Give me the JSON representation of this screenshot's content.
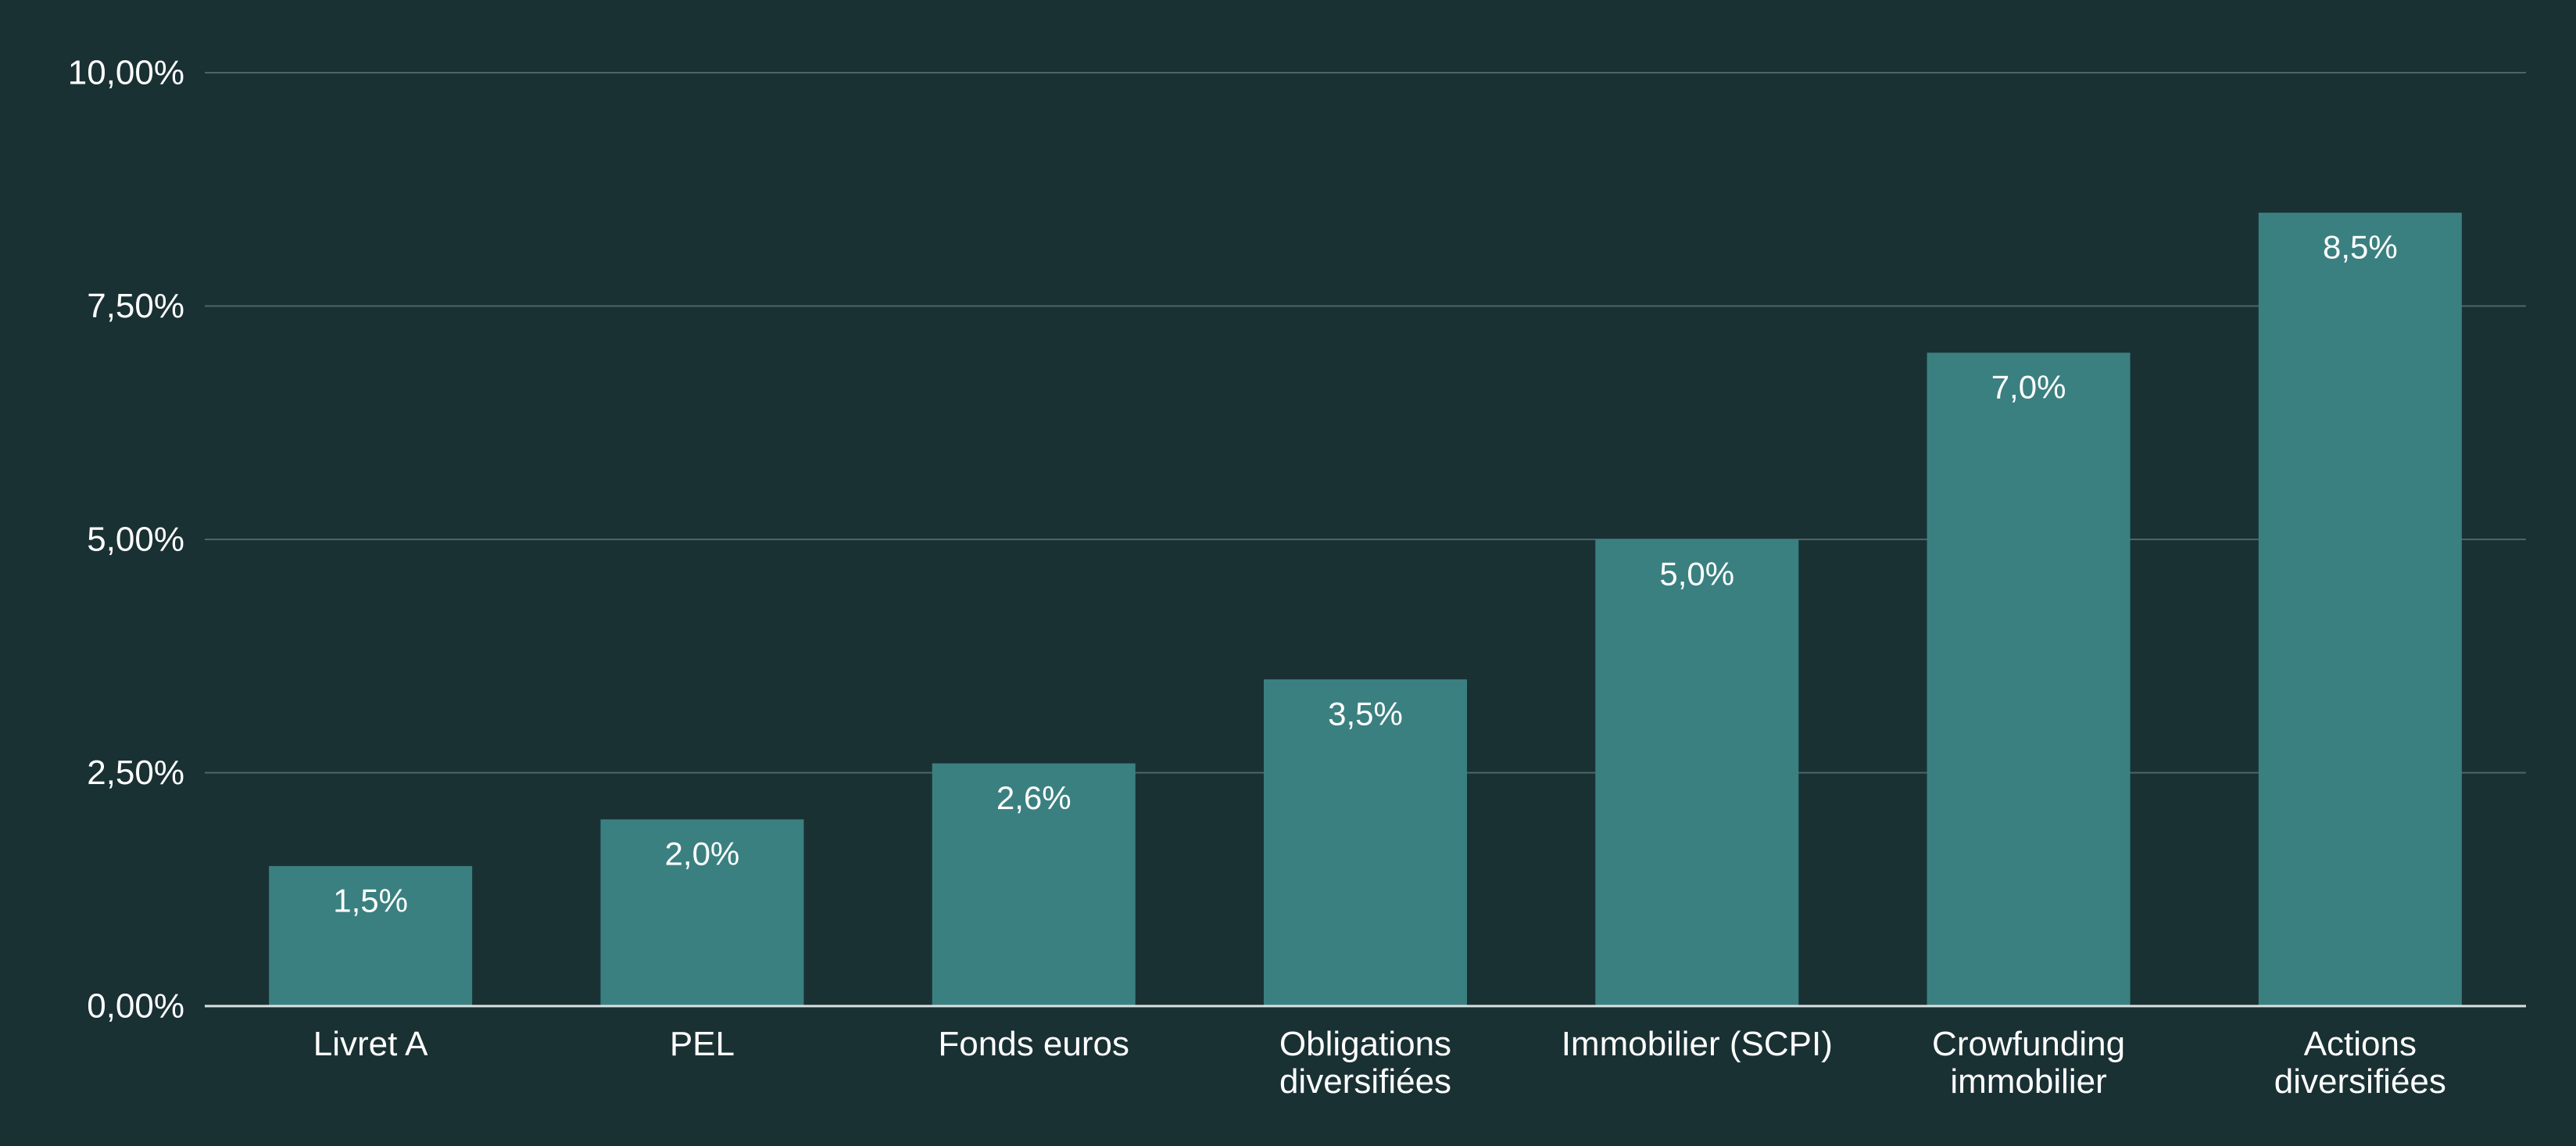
{
  "chart_data": {
    "type": "bar",
    "title": "",
    "xlabel": "",
    "ylabel": "",
    "categories": [
      [
        "Livret A"
      ],
      [
        "PEL"
      ],
      [
        "Fonds euros"
      ],
      [
        "Obligations",
        "diversifiées"
      ],
      [
        "Immobilier (SCPI)"
      ],
      [
        "Crowfunding",
        "immobilier"
      ],
      [
        "Actions",
        "diversifiées"
      ]
    ],
    "values": [
      1.5,
      2.0,
      2.6,
      3.5,
      5.0,
      7.0,
      8.5
    ],
    "data_labels": [
      "1,5%",
      "2,0%",
      "2,6%",
      "3,5%",
      "5,0%",
      "7,0%",
      "8,5%"
    ],
    "ylim": [
      0,
      10
    ],
    "yticks": [
      0,
      2.5,
      5,
      7.5,
      10
    ],
    "ytick_labels": [
      "0,00%",
      "2,50%",
      "5,00%",
      "7,50%",
      "10,00%"
    ],
    "grid": true,
    "legend": "none",
    "colors": {
      "background": "#1a3134",
      "bar": "#3b8080",
      "grid": "#4a6668",
      "axis": "#d9e2e2",
      "text": "#ffffff"
    }
  }
}
